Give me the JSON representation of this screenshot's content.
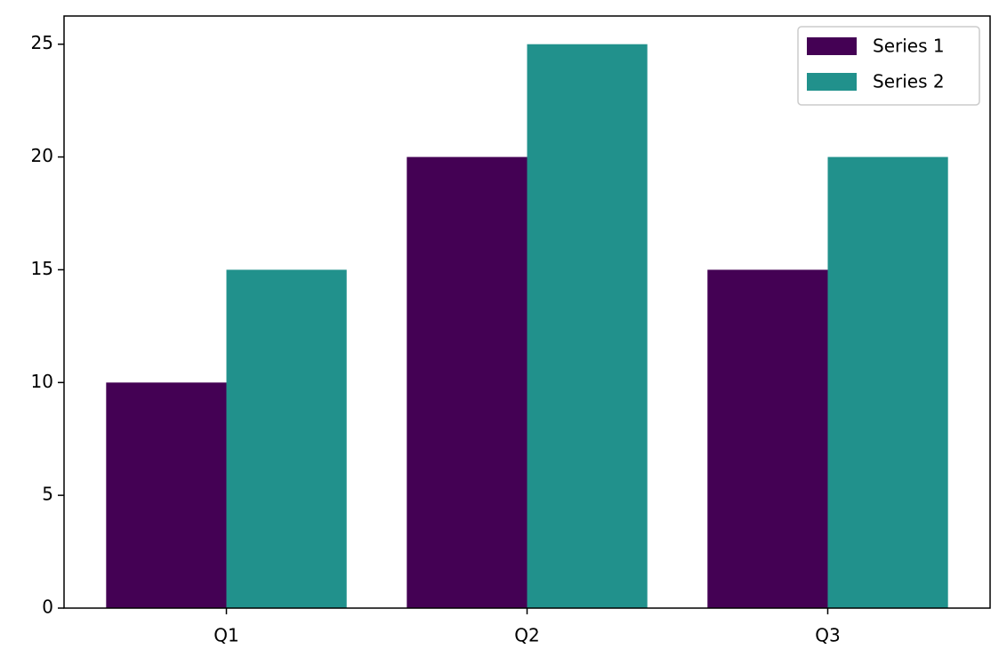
{
  "chart_data": {
    "type": "bar",
    "categories": [
      "Q1",
      "Q2",
      "Q3"
    ],
    "series": [
      {
        "name": "Series 1",
        "color": "#440154",
        "values": [
          10,
          20,
          15
        ]
      },
      {
        "name": "Series 2",
        "color": "#21918c",
        "values": [
          15,
          25,
          20
        ]
      }
    ],
    "ylim": [
      0,
      26.25
    ],
    "yticks": [
      0,
      5,
      10,
      15,
      20,
      25
    ],
    "grid": false,
    "legend": "upper right"
  }
}
